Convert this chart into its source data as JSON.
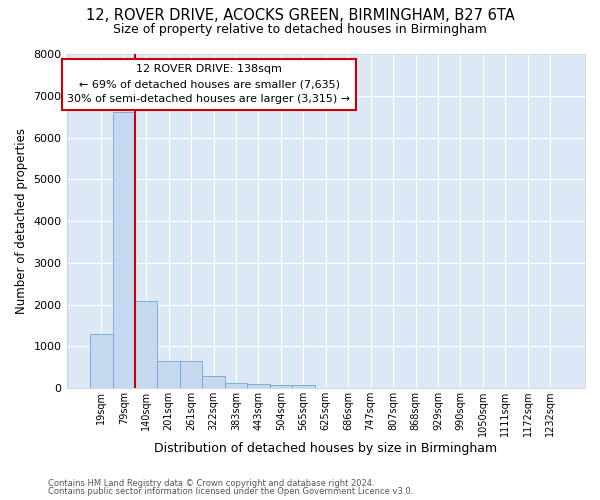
{
  "title": "12, ROVER DRIVE, ACOCKS GREEN, BIRMINGHAM, B27 6TA",
  "subtitle": "Size of property relative to detached houses in Birmingham",
  "xlabel": "Distribution of detached houses by size in Birmingham",
  "ylabel": "Number of detached properties",
  "footnote1": "Contains HM Land Registry data © Crown copyright and database right 2024.",
  "footnote2": "Contains public sector information licensed under the Open Government Licence v3.0.",
  "bar_labels": [
    "19sqm",
    "79sqm",
    "140sqm",
    "201sqm",
    "261sqm",
    "322sqm",
    "383sqm",
    "443sqm",
    "504sqm",
    "565sqm",
    "625sqm",
    "686sqm",
    "747sqm",
    "807sqm",
    "868sqm",
    "929sqm",
    "990sqm",
    "1050sqm",
    "1111sqm",
    "1172sqm",
    "1232sqm"
  ],
  "bar_values": [
    1300,
    6600,
    2080,
    640,
    640,
    300,
    130,
    100,
    70,
    70,
    0,
    0,
    0,
    0,
    0,
    0,
    0,
    0,
    0,
    0,
    0
  ],
  "bar_color": "#c5d8f0",
  "bar_edge_color": "#6fa8d5",
  "vline_index": 2,
  "vline_color": "#cc0000",
  "annotation_text": "12 ROVER DRIVE: 138sqm\n← 69% of detached houses are smaller (7,635)\n30% of semi-detached houses are larger (3,315) →",
  "annotation_box_color": "white",
  "annotation_box_edge_color": "#cc0000",
  "ylim": [
    0,
    8000
  ],
  "yticks": [
    0,
    1000,
    2000,
    3000,
    4000,
    5000,
    6000,
    7000,
    8000
  ],
  "bg_color": "#dce8f5",
  "grid_color": "white",
  "title_fontsize": 10.5,
  "subtitle_fontsize": 9,
  "ylabel_fontsize": 8.5,
  "xlabel_fontsize": 9,
  "ytick_fontsize": 8,
  "xtick_fontsize": 7,
  "annotation_fontsize": 8,
  "footnote_fontsize": 6
}
